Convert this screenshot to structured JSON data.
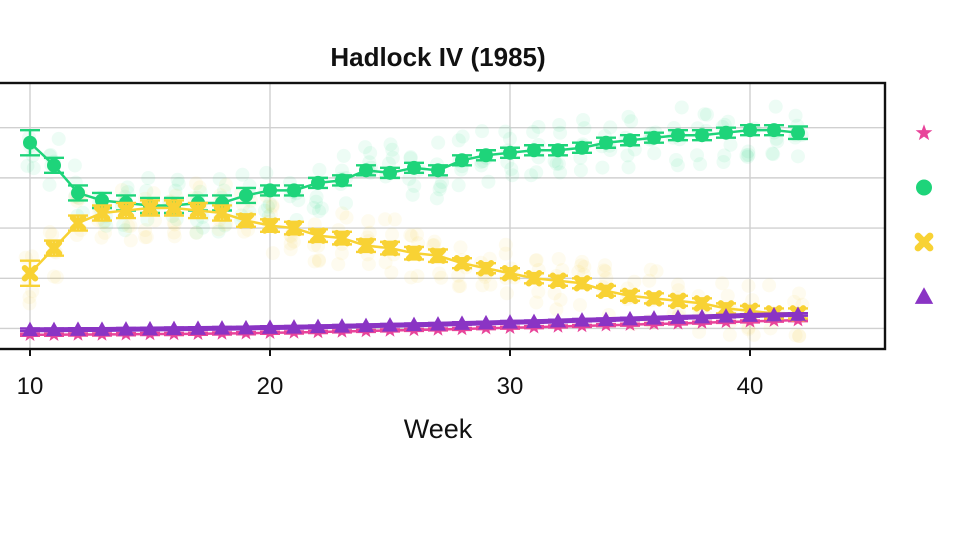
{
  "chart_data": {
    "type": "line",
    "title": "Hadlock IV (1985)",
    "xlabel": "Week",
    "ylabel": "",
    "xlim": [
      9.3,
      45.5
    ],
    "ylim": [
      0,
      100
    ],
    "x_ticks": [
      10,
      20,
      30,
      40
    ],
    "x_tick_labels": [
      "10",
      "20",
      "30",
      "40"
    ],
    "y_gridlines": [
      3,
      23,
      43,
      63,
      83
    ],
    "grid": true,
    "legend_position": "right",
    "colors": {
      "series_pink": "#e8449a",
      "series_green": "#1ed47a",
      "series_yellow": "#f8d234",
      "series_purple": "#8a34c4",
      "frame": "#111111",
      "grid": "#d0d0d0"
    },
    "x": [
      10,
      11,
      12,
      13,
      14,
      15,
      16,
      17,
      18,
      19,
      20,
      21,
      22,
      23,
      24,
      25,
      26,
      27,
      28,
      29,
      30,
      31,
      32,
      33,
      34,
      35,
      36,
      37,
      38,
      39,
      40,
      41,
      42
    ],
    "series": [
      {
        "marker": "star",
        "color": "#e8449a",
        "values": [
          0.5,
          0.5,
          0.6,
          0.6,
          0.7,
          0.8,
          0.8,
          0.9,
          1.0,
          1.1,
          1.3,
          1.4,
          1.6,
          1.8,
          2.0,
          2.2,
          2.4,
          2.6,
          2.8,
          3.1,
          3.3,
          3.5,
          3.8,
          4.0,
          4.3,
          4.5,
          4.8,
          5.0,
          5.3,
          5.6,
          5.8,
          6.1,
          6.3
        ],
        "errors": [
          0.4,
          0.4,
          0.4,
          0.4,
          0.4,
          0.4,
          0.4,
          0.4,
          0.4,
          0.4,
          0.4,
          0.4,
          0.4,
          0.4,
          0.4,
          0.4,
          0.4,
          0.4,
          0.4,
          0.4,
          0.4,
          0.4,
          0.4,
          0.4,
          0.4,
          0.4,
          0.4,
          0.4,
          0.4,
          0.4,
          0.4,
          0.4,
          0.4
        ]
      },
      {
        "marker": "circle",
        "color": "#1ed47a",
        "values": [
          77,
          68,
          57,
          54,
          53,
          52,
          52,
          53,
          53,
          56,
          58,
          58,
          61,
          62,
          66,
          65,
          67,
          66,
          70,
          72,
          73,
          74,
          74,
          75,
          77,
          78,
          79,
          80,
          80,
          81,
          82,
          82,
          81
        ],
        "errors": [
          5,
          3,
          3,
          3,
          3,
          3,
          3,
          3,
          3,
          3,
          2,
          2,
          2,
          2,
          2,
          2,
          2,
          2,
          2,
          2,
          2,
          2,
          2,
          2,
          2,
          2,
          2,
          2,
          2,
          2,
          2,
          2,
          2.5
        ]
      },
      {
        "marker": "x",
        "color": "#f8d234",
        "values": [
          25,
          35,
          45,
          49,
          50,
          51,
          51,
          50,
          49,
          46,
          44,
          43,
          40,
          39,
          36,
          35,
          33,
          32,
          29,
          27,
          25,
          23,
          22,
          21,
          18,
          16,
          15,
          14,
          13,
          11,
          10,
          9,
          9
        ],
        "errors": [
          5,
          3,
          3,
          3,
          3,
          3,
          3,
          3,
          3,
          2.5,
          2.5,
          2.5,
          2.5,
          2.5,
          2.5,
          2.5,
          2.5,
          2.5,
          2,
          2,
          2,
          2,
          2,
          2,
          2,
          2,
          2,
          2,
          2,
          2,
          2,
          2,
          2
        ]
      },
      {
        "marker": "triangle",
        "color": "#8a34c4",
        "values": [
          2.5,
          2.5,
          2.6,
          2.6,
          2.7,
          2.8,
          2.9,
          3.0,
          3.1,
          3.2,
          3.4,
          3.5,
          3.7,
          3.9,
          4.1,
          4.3,
          4.5,
          4.7,
          5.0,
          5.2,
          5.5,
          5.7,
          6.0,
          6.3,
          6.5,
          6.8,
          7.1,
          7.4,
          7.6,
          7.9,
          8.2,
          8.4,
          8.6
        ],
        "errors": [
          0.5,
          0.5,
          0.5,
          0.5,
          0.5,
          0.5,
          0.5,
          0.5,
          0.5,
          0.5,
          0.5,
          0.5,
          0.5,
          0.5,
          0.5,
          0.5,
          0.5,
          0.5,
          0.5,
          0.5,
          0.5,
          0.5,
          0.5,
          0.5,
          0.5,
          0.5,
          0.5,
          0.5,
          0.5,
          0.5,
          0.5,
          0.5,
          0.5
        ]
      }
    ],
    "legend": {
      "entries": [
        {
          "marker": "star",
          "color": "#e8449a"
        },
        {
          "marker": "circle",
          "color": "#1ed47a"
        },
        {
          "marker": "x",
          "color": "#f8d234"
        },
        {
          "marker": "triangle",
          "color": "#8a34c4"
        }
      ]
    }
  }
}
